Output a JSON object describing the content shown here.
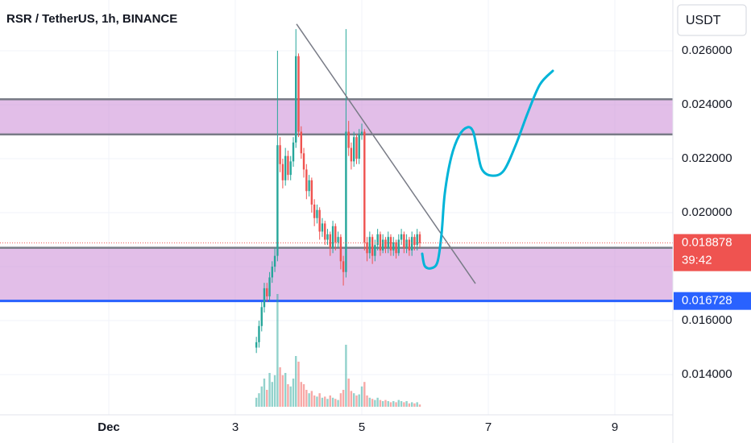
{
  "chart_data": {
    "type": "candlestick",
    "title": "RSR / TetherUS, 1h, BINANCE",
    "currency": "USDT",
    "colors": {
      "up": "#26a69a",
      "down": "#ef5350"
    },
    "grid": true,
    "xlim": [
      -0.72,
      9.917
    ],
    "xticks": [
      {
        "value": 1,
        "label": "Dec"
      },
      3,
      5,
      7,
      9
    ],
    "ylim": [
      0.01251,
      0.02788
    ],
    "yticks": [
      {
        "value": 0.014,
        "label": "0.014000"
      },
      {
        "value": 0.016,
        "label": "0.016000"
      },
      {
        "value": 0.018,
        "label": "0.018000"
      },
      {
        "value": 0.02,
        "label": "0.020000"
      },
      {
        "value": 0.022,
        "label": "0.022000"
      },
      {
        "value": 0.024,
        "label": "0.024000"
      },
      {
        "value": 0.026,
        "label": "0.026000"
      }
    ],
    "x": [
      3.333,
      3.375,
      3.417,
      3.458,
      3.5,
      3.542,
      3.583,
      3.625,
      3.667,
      3.708,
      3.75,
      3.792,
      3.833,
      3.875,
      3.917,
      3.958,
      4,
      4.042,
      4.083,
      4.125,
      4.167,
      4.208,
      4.25,
      4.292,
      4.333,
      4.375,
      4.417,
      4.458,
      4.5,
      4.542,
      4.583,
      4.625,
      4.667,
      4.708,
      4.75,
      4.792,
      4.833,
      4.875,
      4.917,
      4.958,
      5,
      5.042,
      5.083,
      5.125,
      5.167,
      5.208,
      5.25,
      5.292,
      5.333,
      5.375,
      5.417,
      5.458,
      5.5,
      5.542,
      5.583,
      5.625,
      5.667,
      5.708,
      5.75,
      5.792,
      5.833,
      5.875,
      5.917
    ],
    "open": [
      0.015,
      0.0152,
      0.0158,
      0.0165,
      0.0172,
      0.0169,
      0.0176,
      0.018,
      0.0184,
      0.0225,
      0.0218,
      0.0212,
      0.0221,
      0.0214,
      0.0219,
      0.0226,
      0.0258,
      0.023,
      0.0222,
      0.0216,
      0.0208,
      0.0212,
      0.0203,
      0.0198,
      0.0201,
      0.0193,
      0.0196,
      0.019,
      0.0192,
      0.0187,
      0.0195,
      0.0189,
      0.0191,
      0.0182,
      0.0178,
      0.023,
      0.0224,
      0.0219,
      0.0228,
      0.022,
      0.0229,
      0.023,
      0.0189,
      0.0185,
      0.0191,
      0.0184,
      0.0188,
      0.0192,
      0.0186,
      0.019,
      0.0187,
      0.0191,
      0.0186,
      0.0189,
      0.0185,
      0.019,
      0.0192,
      0.0187,
      0.019,
      0.0186,
      0.0191,
      0.0188,
      0.0192
    ],
    "high": [
      0.0154,
      0.016,
      0.0167,
      0.0174,
      0.0174,
      0.0178,
      0.0182,
      0.0187,
      0.026,
      0.0228,
      0.022,
      0.0224,
      0.0223,
      0.0221,
      0.0228,
      0.0268,
      0.0259,
      0.0232,
      0.0224,
      0.0218,
      0.0214,
      0.0213,
      0.0205,
      0.0203,
      0.0202,
      0.0198,
      0.0197,
      0.0194,
      0.0193,
      0.0197,
      0.0196,
      0.0193,
      0.0192,
      0.0184,
      0.0268,
      0.0234,
      0.0226,
      0.023,
      0.0229,
      0.0231,
      0.0233,
      0.0231,
      0.0191,
      0.0193,
      0.0192,
      0.019,
      0.0194,
      0.0193,
      0.0192,
      0.0191,
      0.0193,
      0.0192,
      0.0191,
      0.019,
      0.0192,
      0.0194,
      0.0193,
      0.0192,
      0.0191,
      0.0193,
      0.0192,
      0.0194,
      0.0193
    ],
    "low": [
      0.0148,
      0.015,
      0.0156,
      0.0163,
      0.0167,
      0.0167,
      0.0174,
      0.0178,
      0.0182,
      0.0215,
      0.0209,
      0.021,
      0.0212,
      0.0212,
      0.0217,
      0.0224,
      0.0228,
      0.022,
      0.0213,
      0.0205,
      0.0206,
      0.02,
      0.0195,
      0.0196,
      0.019,
      0.0191,
      0.0188,
      0.0188,
      0.0184,
      0.0185,
      0.0186,
      0.0187,
      0.0179,
      0.0173,
      0.0176,
      0.0221,
      0.0216,
      0.0217,
      0.0218,
      0.0218,
      0.0227,
      0.0186,
      0.0182,
      0.0183,
      0.0181,
      0.0182,
      0.0186,
      0.0184,
      0.0185,
      0.0185,
      0.0185,
      0.0184,
      0.0184,
      0.0183,
      0.0184,
      0.0188,
      0.0185,
      0.0185,
      0.0184,
      0.0184,
      0.0186,
      0.0186,
      0.0187
    ],
    "close": [
      0.0152,
      0.0158,
      0.0165,
      0.0172,
      0.0169,
      0.0176,
      0.018,
      0.0184,
      0.0225,
      0.0218,
      0.0212,
      0.0221,
      0.0214,
      0.0219,
      0.0226,
      0.0258,
      0.023,
      0.0222,
      0.0216,
      0.0208,
      0.0212,
      0.0203,
      0.0198,
      0.0201,
      0.0193,
      0.0196,
      0.019,
      0.0192,
      0.0187,
      0.0195,
      0.0189,
      0.0191,
      0.0182,
      0.0178,
      0.023,
      0.0224,
      0.0219,
      0.0228,
      0.022,
      0.0229,
      0.023,
      0.0189,
      0.0185,
      0.0191,
      0.0184,
      0.0188,
      0.0192,
      0.0186,
      0.019,
      0.0187,
      0.0191,
      0.0186,
      0.0189,
      0.0185,
      0.019,
      0.0192,
      0.0187,
      0.019,
      0.0186,
      0.0191,
      0.0188,
      0.0192,
      0.018878
    ],
    "volume": [
      8,
      12,
      18,
      25,
      15,
      30,
      22,
      28,
      100,
      35,
      28,
      30,
      20,
      18,
      25,
      45,
      40,
      22,
      20,
      15,
      12,
      14,
      10,
      9,
      12,
      8,
      9,
      7,
      10,
      8,
      7,
      6,
      12,
      15,
      55,
      25,
      14,
      12,
      10,
      11,
      18,
      22,
      10,
      8,
      7,
      6,
      8,
      6,
      5,
      6,
      5,
      4,
      5,
      4,
      6,
      5,
      4,
      5,
      3,
      4,
      3,
      4,
      2
    ],
    "zones": [
      {
        "top": 0.0242,
        "bottom": 0.0229
      },
      {
        "top": 0.0187,
        "bottom": 0.016728
      }
    ],
    "horizontal_line": {
      "value": 0.016728,
      "color": "#2962ff"
    },
    "last_price": {
      "value": 0.018878,
      "countdown": "39:42"
    },
    "trendline": {
      "x": [
        3.968,
        6.796
      ],
      "y": [
        0.02699,
        0.017373
      ],
      "color": "#787b86"
    },
    "sketch": {
      "color": "#00b4d8",
      "x": [
        5.955,
        5.994,
        6.096,
        6.197,
        6.261,
        6.312,
        6.414,
        6.541,
        6.669,
        6.758,
        6.822,
        6.898,
        7.051,
        7.242,
        7.433,
        7.624,
        7.815,
        8.019
      ],
      "y": [
        0.018478,
        0.01803,
        0.01794,
        0.018179,
        0.019224,
        0.020716,
        0.02206,
        0.022866,
        0.023164,
        0.023015,
        0.022358,
        0.021612,
        0.021373,
        0.021552,
        0.022507,
        0.023701,
        0.024746,
        0.025254
      ]
    }
  }
}
